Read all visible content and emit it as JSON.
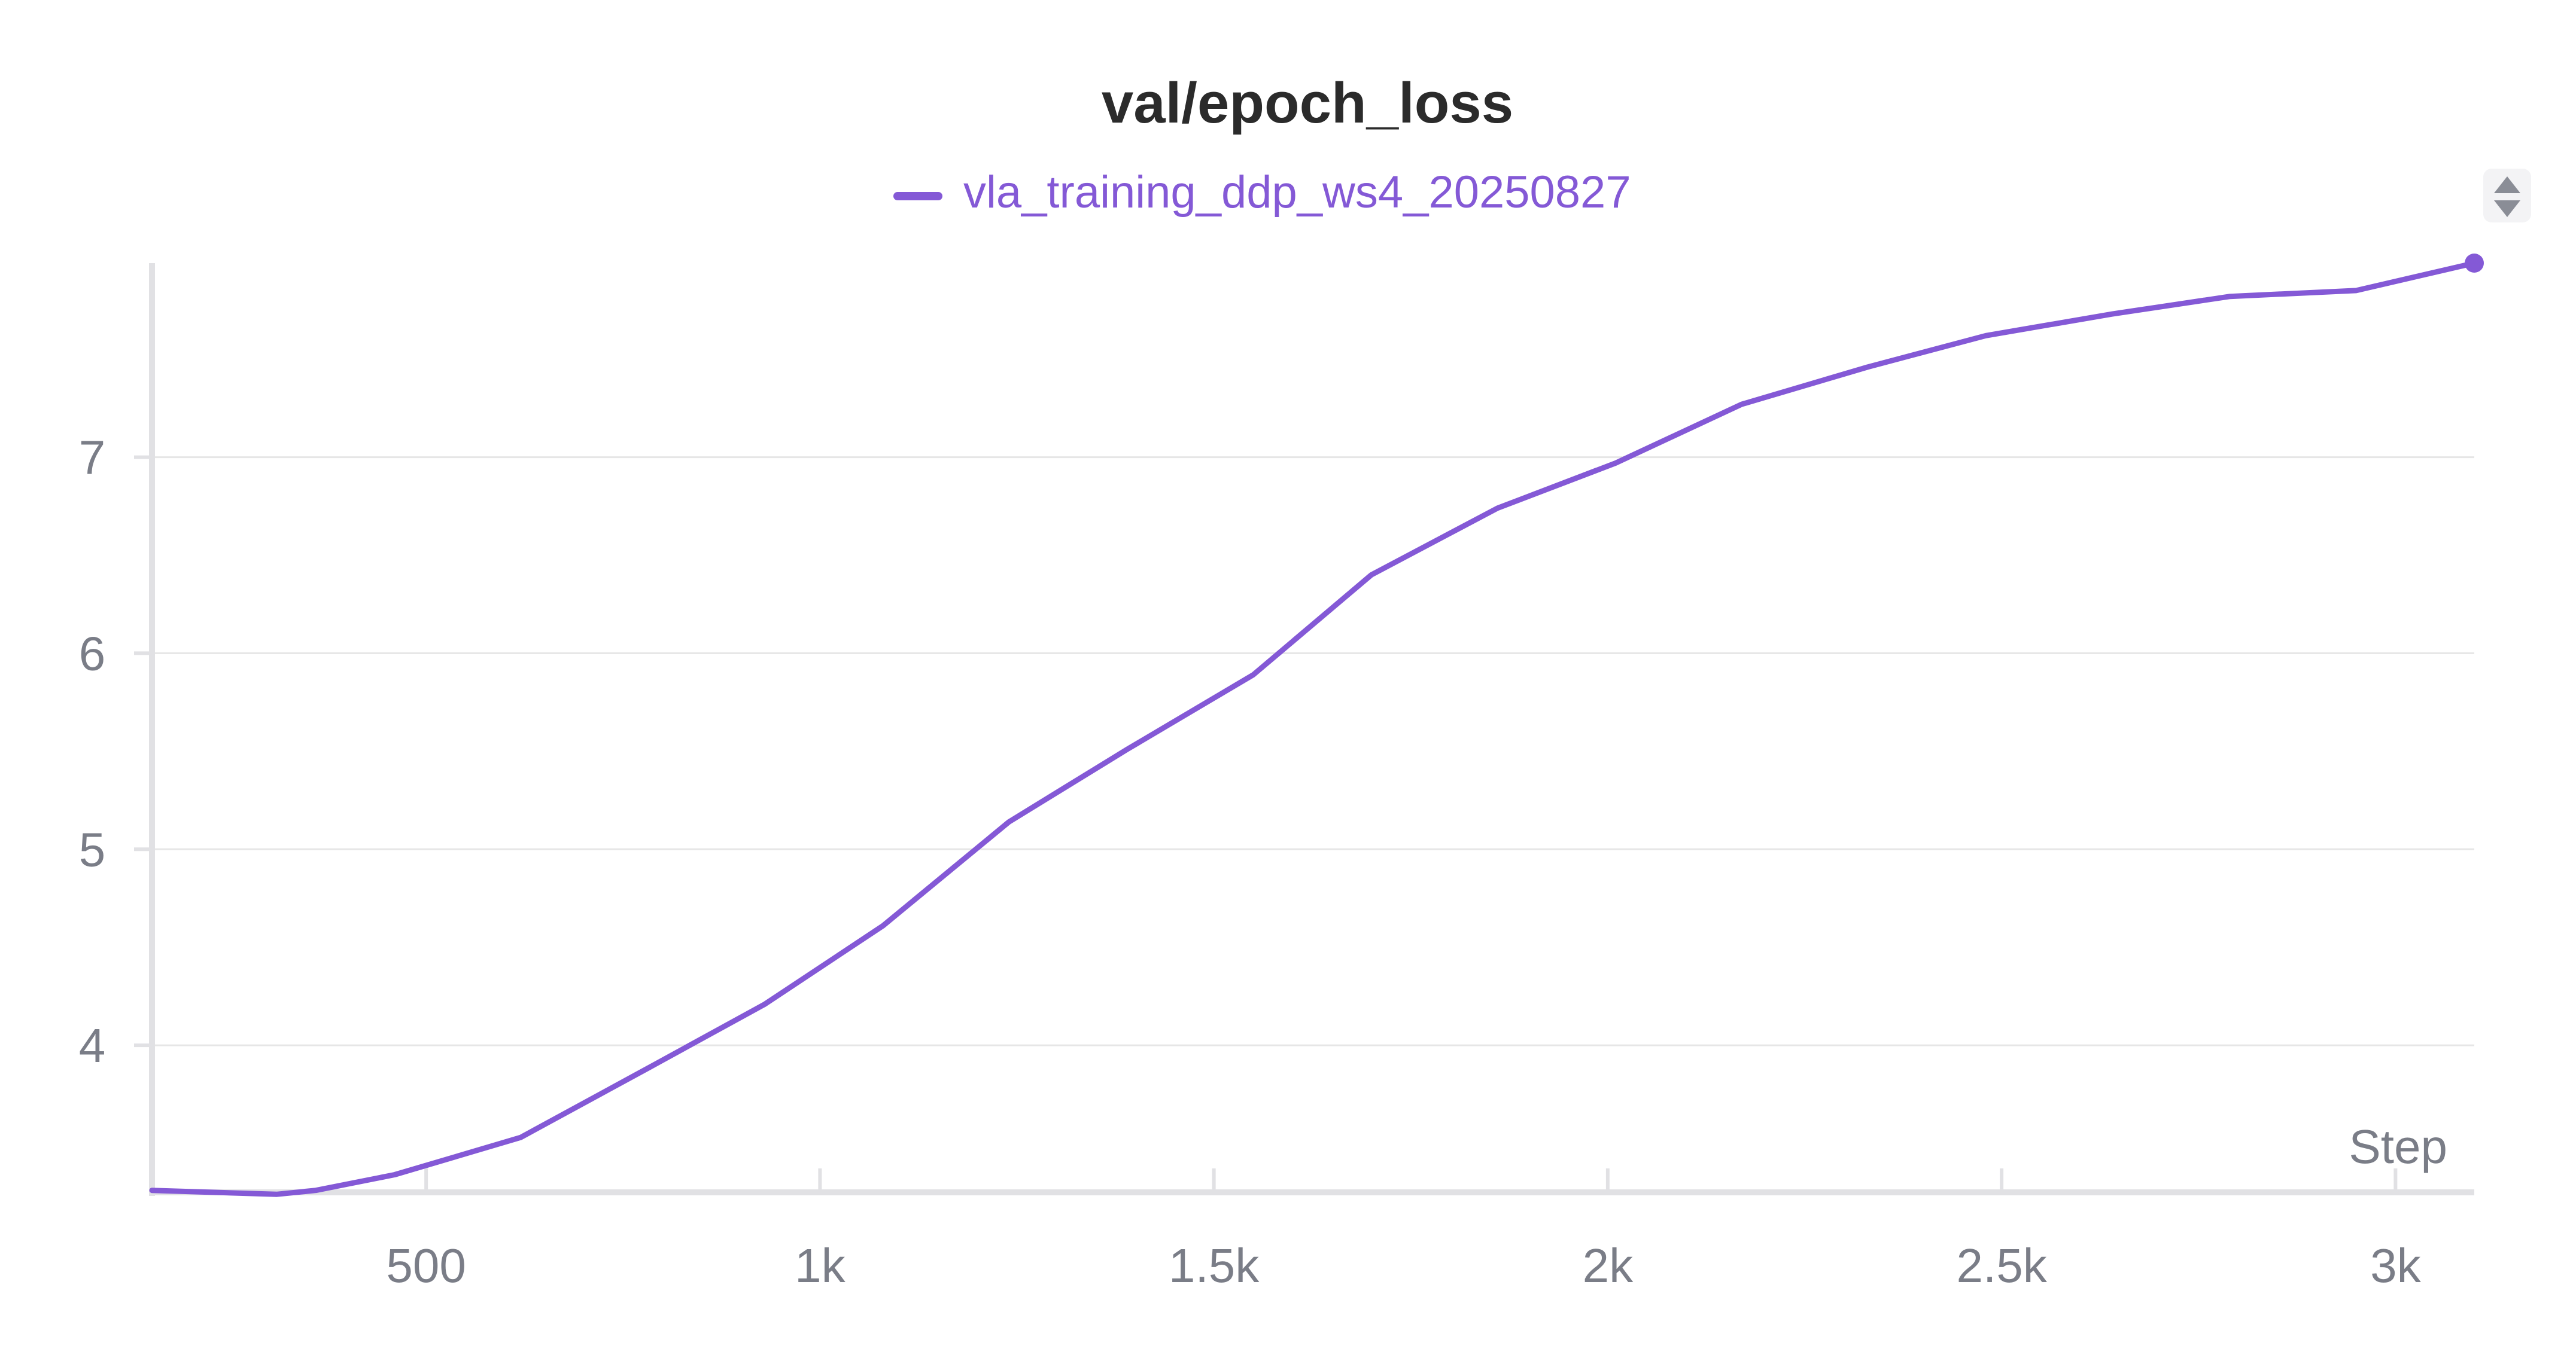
{
  "chart_data": {
    "type": "line",
    "title": "val/epoch_loss",
    "xlabel": "Step",
    "ylabel": "",
    "x_ticks": [
      {
        "value": 500,
        "label": "500"
      },
      {
        "value": 1000,
        "label": "1k"
      },
      {
        "value": 1500,
        "label": "1.5k"
      },
      {
        "value": 2000,
        "label": "2k"
      },
      {
        "value": 2500,
        "label": "2.5k"
      },
      {
        "value": 3000,
        "label": "3k"
      }
    ],
    "y_ticks": [
      {
        "value": 4,
        "label": "4"
      },
      {
        "value": 5,
        "label": "5"
      },
      {
        "value": 6,
        "label": "6"
      },
      {
        "value": 7,
        "label": "7"
      }
    ],
    "xlim": [
      152,
      3100
    ],
    "ylim": [
      3.25,
      7.99
    ],
    "grid": true,
    "legend_position": "top-center",
    "colors": {
      "series": "#8459d6",
      "grid": "#e6e6e6",
      "axis": "#e1e1e4",
      "text": "#7a7d87",
      "title": "#2b2b2b"
    },
    "series": [
      {
        "name": "vla_training_ddp_ws4_20250827",
        "x": [
          152,
          310,
          360,
          460,
          620,
          780,
          930,
          1080,
          1240,
          1390,
          1550,
          1700,
          1860,
          2010,
          2170,
          2330,
          2480,
          2640,
          2790,
          2950,
          3100
        ],
        "y": [
          3.26,
          3.24,
          3.26,
          3.34,
          3.53,
          3.88,
          4.21,
          4.61,
          5.14,
          5.51,
          5.89,
          6.4,
          6.74,
          6.97,
          7.27,
          7.46,
          7.62,
          7.73,
          7.82,
          7.85,
          7.99
        ]
      }
    ]
  },
  "controls": {
    "sort_icon": "sort-updown-icon"
  }
}
